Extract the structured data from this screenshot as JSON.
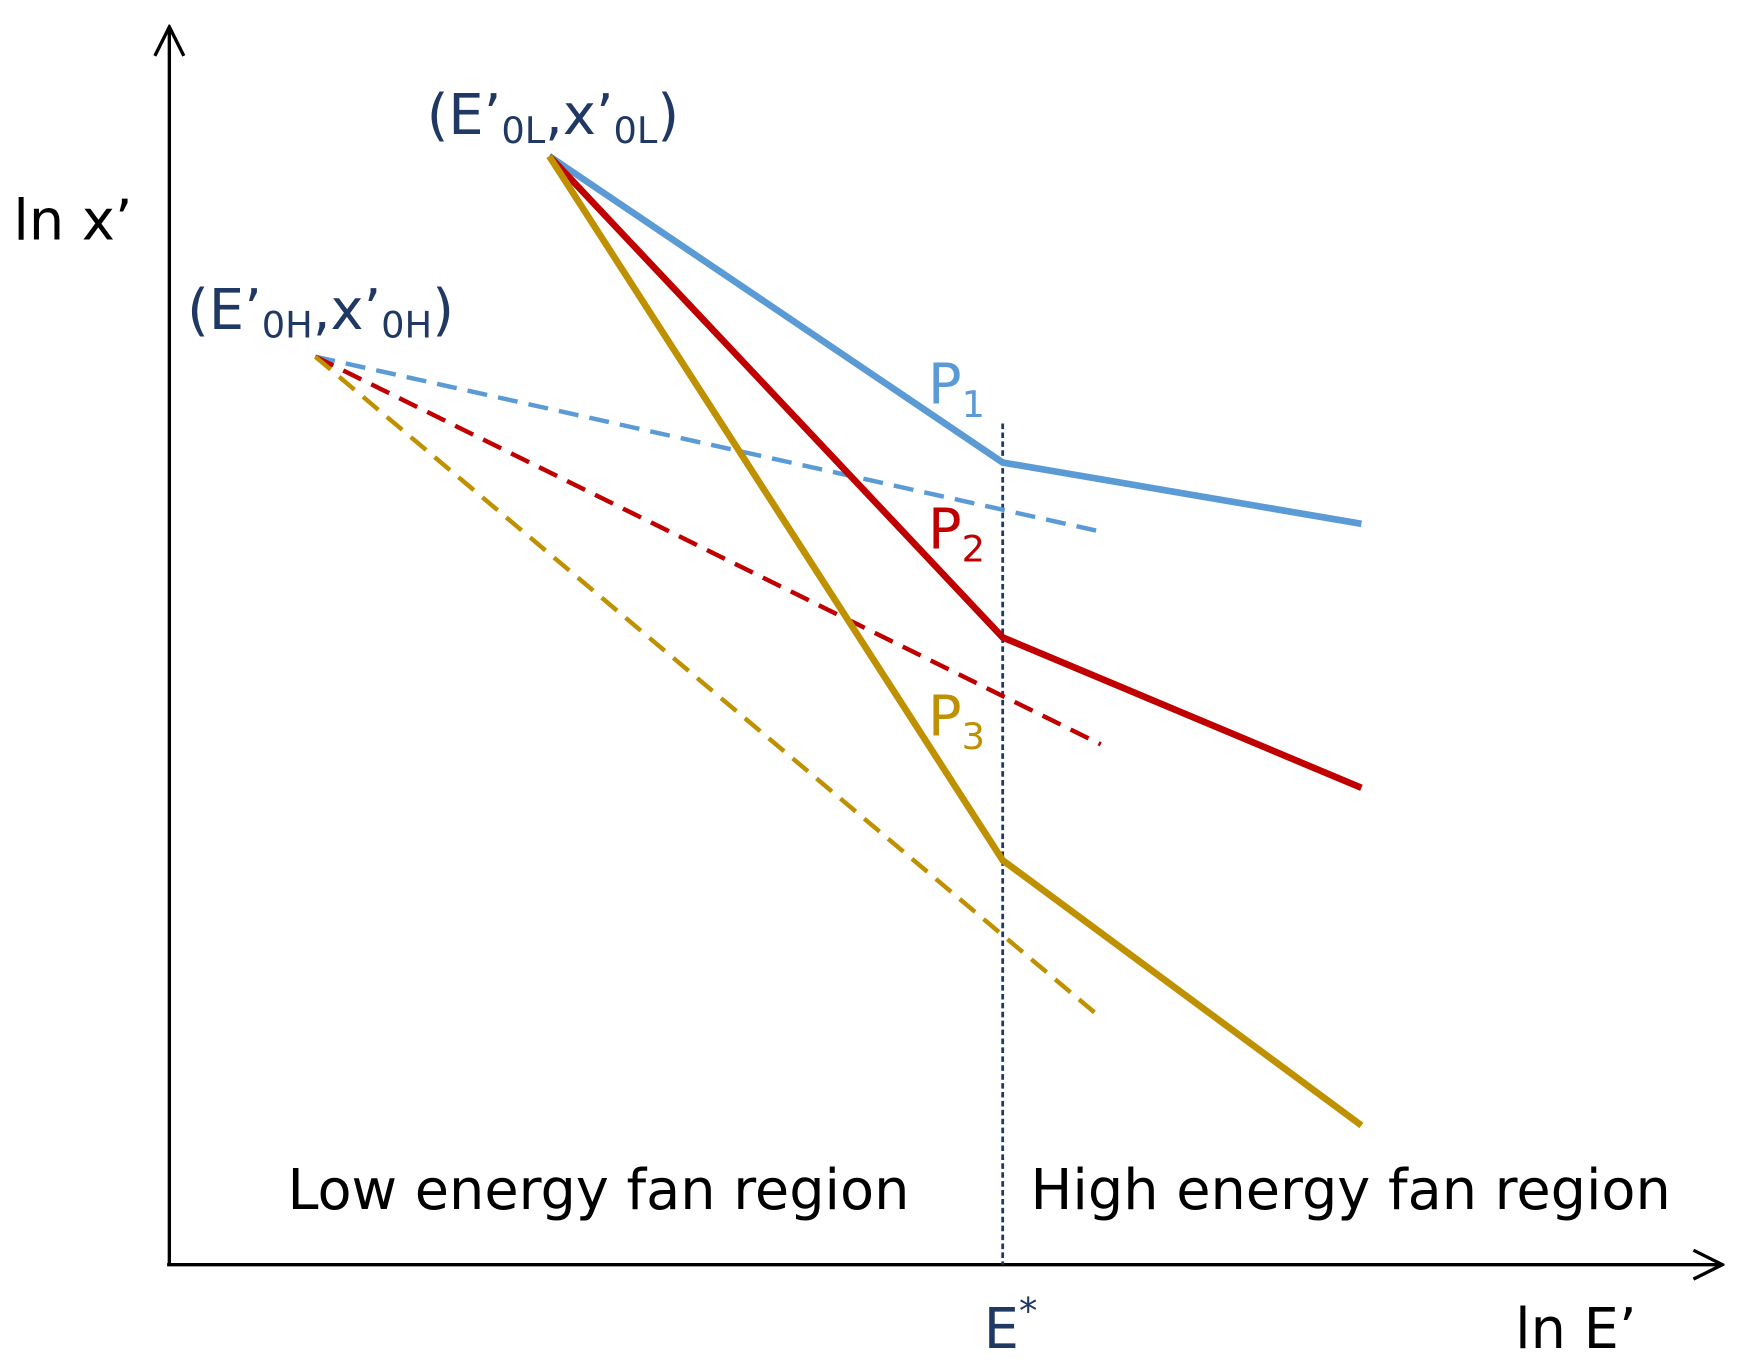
{
  "axes": {
    "y_label": "ln x’",
    "x_label": "ln E’"
  },
  "points": [
    {
      "open": "(E’",
      "sub1": "0L",
      "mid": ",x’",
      "sub2": "0L",
      "close": ")"
    },
    {
      "open": "(E’",
      "sub1": "0H",
      "mid": ",x’",
      "sub2": "0H",
      "close": ")"
    }
  ],
  "paths": [
    {
      "name": "P",
      "sub": "1"
    },
    {
      "name": "P",
      "sub": "2"
    },
    {
      "name": "P",
      "sub": "3"
    }
  ],
  "threshold": {
    "base": "E",
    "sup": "*"
  },
  "regions": [
    "Low energy fan region",
    "High energy fan region"
  ]
}
